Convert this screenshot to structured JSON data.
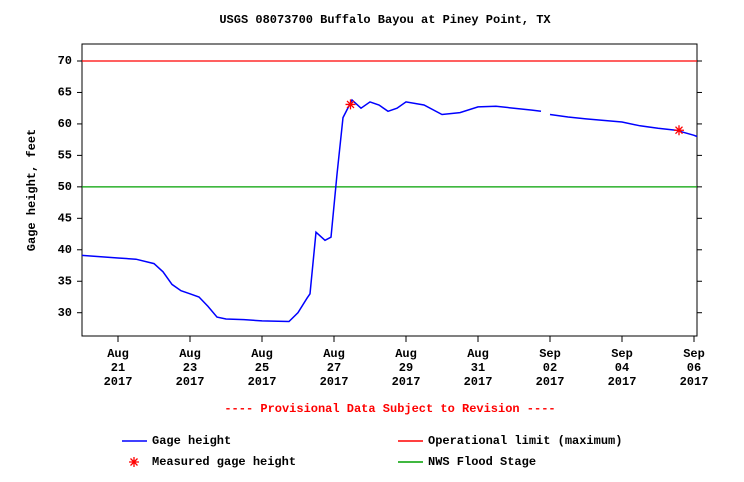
{
  "chart_data": {
    "type": "line",
    "title": "USGS 08073700 Buffalo Bayou at Piney Point, TX",
    "y_label": "Gage height, feet",
    "annotation": "---- Provisional Data Subject to Revision ----",
    "annotation_color": "#ff0000",
    "x": [
      "2017-08-20T00:00",
      "2017-08-21T00:00",
      "2017-08-21T12:00",
      "2017-08-22T00:00",
      "2017-08-22T06:00",
      "2017-08-22T12:00",
      "2017-08-22T18:00",
      "2017-08-23T00:00",
      "2017-08-23T06:00",
      "2017-08-23T12:00",
      "2017-08-23T18:00",
      "2017-08-24T00:00",
      "2017-08-24T12:00",
      "2017-08-25T00:00",
      "2017-08-25T18:00",
      "2017-08-26T00:00",
      "2017-08-26T06:00",
      "2017-08-26T08:00",
      "2017-08-26T12:00",
      "2017-08-26T18:00",
      "2017-08-26T22:00",
      "2017-08-27T02:00",
      "2017-08-27T06:00",
      "2017-08-27T12:00",
      "2017-08-27T18:00",
      "2017-08-28T00:00",
      "2017-08-28T06:00",
      "2017-08-28T12:00",
      "2017-08-28T18:00",
      "2017-08-29T00:00",
      "2017-08-29T12:00",
      "2017-08-30T00:00",
      "2017-08-30T12:00",
      "2017-08-31T00:00",
      "2017-08-31T12:00",
      "2017-09-01T00:00",
      "2017-09-01T12:00",
      "2017-09-01T18:00",
      "2017-09-01T21:00",
      "2017-09-02T00:00",
      "2017-09-02T12:00",
      "2017-09-03T00:00",
      "2017-09-04T00:00",
      "2017-09-04T12:00",
      "2017-09-05T00:00",
      "2017-09-05T12:00",
      "2017-09-06T00:00",
      "2017-09-06T02:00"
    ],
    "series": [
      {
        "name": "Gage height",
        "color": "#0000ff",
        "values": [
          39.1,
          38.7,
          38.5,
          37.8,
          36.5,
          34.5,
          33.5,
          33.0,
          32.5,
          31.0,
          29.3,
          29.0,
          28.9,
          28.7,
          28.6,
          30.0,
          32.3,
          33.0,
          42.8,
          41.5,
          42.0,
          52.0,
          61.0,
          63.8,
          62.5,
          63.5,
          63.0,
          62.0,
          62.5,
          63.5,
          63.0,
          61.5,
          61.8,
          62.7,
          62.8,
          62.5,
          62.2,
          62.0,
          null,
          61.5,
          61.1,
          60.8,
          60.3,
          59.7,
          59.3,
          59.0,
          58.2,
          58.0
        ]
      },
      {
        "name": "Measured gage height",
        "color": "#ff0000",
        "marker": "asterisk",
        "x": [
          "2017-08-27T11:00",
          "2017-09-05T14:00"
        ],
        "values": [
          63.1,
          59.0
        ]
      }
    ],
    "reference_lines": [
      {
        "name": "Operational limit (maximum)",
        "value": 70,
        "color": "#ff0000"
      },
      {
        "name": "NWS Flood Stage",
        "value": 50,
        "color": "#00a000"
      }
    ],
    "xlim": [
      "2017-08-20T00:00",
      "2017-09-06T02:00"
    ],
    "xticks": [
      {
        "value": "2017-08-21T00:00",
        "label": "Aug 21 2017"
      },
      {
        "value": "2017-08-23T00:00",
        "label": "Aug 23 2017"
      },
      {
        "value": "2017-08-25T00:00",
        "label": "Aug 25 2017"
      },
      {
        "value": "2017-08-27T00:00",
        "label": "Aug 27 2017"
      },
      {
        "value": "2017-08-29T00:00",
        "label": "Aug 29 2017"
      },
      {
        "value": "2017-08-31T00:00",
        "label": "Aug 31 2017"
      },
      {
        "value": "2017-09-02T00:00",
        "label": "Sep 02 2017"
      },
      {
        "value": "2017-09-04T00:00",
        "label": "Sep 04 2017"
      },
      {
        "value": "2017-09-06T00:00",
        "label": "Sep 06 2017"
      }
    ],
    "ylim": [
      26.3,
      72.7
    ],
    "yticks": [
      30,
      35,
      40,
      45,
      50,
      55,
      60,
      65,
      70
    ]
  }
}
